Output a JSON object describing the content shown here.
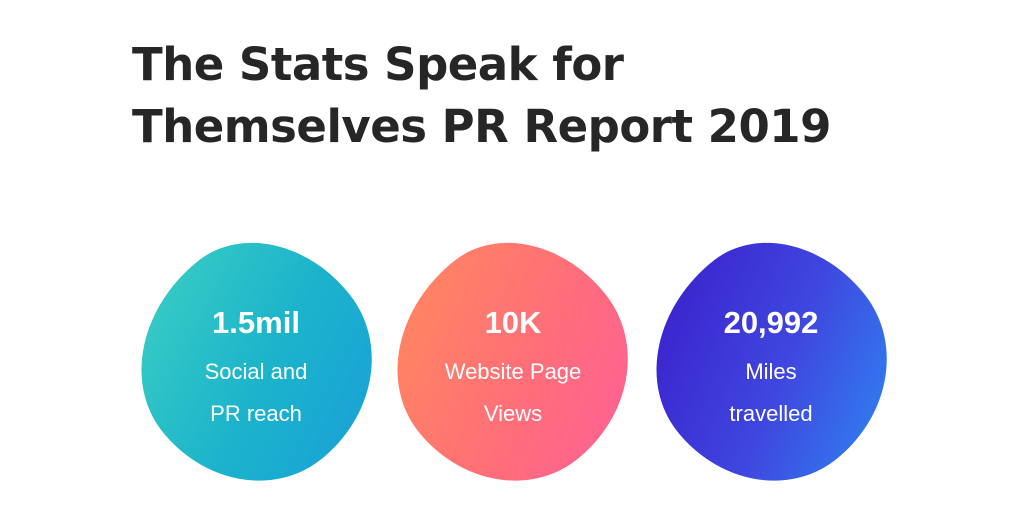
{
  "title": {
    "line1": "The Stats Speak for",
    "line2": "Themselves PR Report 2019"
  },
  "stats": [
    {
      "value": "1.5mil",
      "label_line1": "Social and",
      "label_line2": "PR reach",
      "gradient_colors": [
        "#3ccfc2",
        "#1aa0d8"
      ]
    },
    {
      "value": "10K",
      "label_line1": "Website Page",
      "label_line2": "Views",
      "gradient_colors": [
        "#ff8a5c",
        "#ff5e98"
      ]
    },
    {
      "value": "20,992",
      "label_line1": "Miles",
      "label_line2": "travelled",
      "gradient_colors": [
        "#3a1bc9",
        "#2d8af3"
      ]
    }
  ],
  "colors": {
    "title_text": "#262626",
    "stat_text": "#ffffff",
    "background": "#ffffff"
  }
}
